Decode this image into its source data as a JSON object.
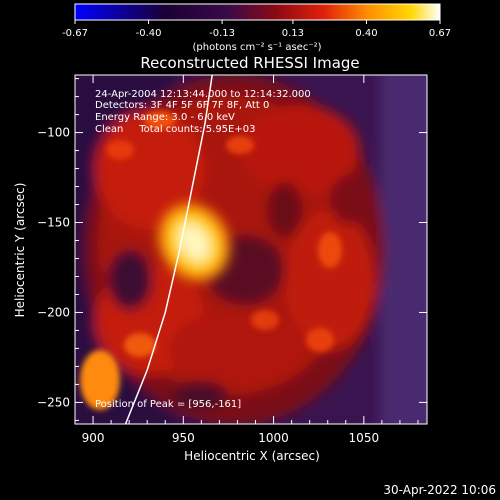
{
  "colorbar": {
    "ticks": [
      "-0.67",
      "-0.40",
      "-0.13",
      "0.13",
      "0.40",
      "0.67"
    ],
    "units": "(photons cm⁻² s⁻¹ asec⁻²)",
    "colors": [
      "#0000ff",
      "#000000",
      "#3a0a48",
      "#8b0a14",
      "#e0200a",
      "#ff8c00",
      "#ffd800",
      "#ffffff"
    ]
  },
  "chart_data": {
    "type": "heatmap",
    "title": "Reconstructed RHESSI Image",
    "xlabel": "Heliocentric X (arcsec)",
    "ylabel": "Heliocentric Y (arcsec)",
    "xlim": [
      890,
      1085
    ],
    "ylim": [
      -262,
      -68
    ],
    "xticks": [
      900,
      950,
      1000,
      1050
    ],
    "yticks": [
      -100,
      -150,
      -200,
      -250
    ],
    "peak": {
      "x": 956,
      "y": -161
    },
    "value_range": [
      -0.67,
      0.67
    ],
    "annotations": [
      "24-Apr-2004 12:13:44.000 to 12:14:32.000",
      "Detectors: 3F 4F 5F 6F 7F 8F, Att 0",
      "Energy Range: 3.0 - 6.0 keV",
      "Clean     Total counts: 5.95E+03"
    ],
    "peak_label": "Position of Peak = [956,-161]",
    "limb_curve": [
      [
        918,
        -262
      ],
      [
        930,
        -232
      ],
      [
        940,
        -200
      ],
      [
        948,
        -165
      ],
      [
        955,
        -130
      ],
      [
        962,
        -95
      ],
      [
        966,
        -68
      ]
    ]
  },
  "footer": {
    "timestamp": "30-Apr-2022 10:06"
  }
}
